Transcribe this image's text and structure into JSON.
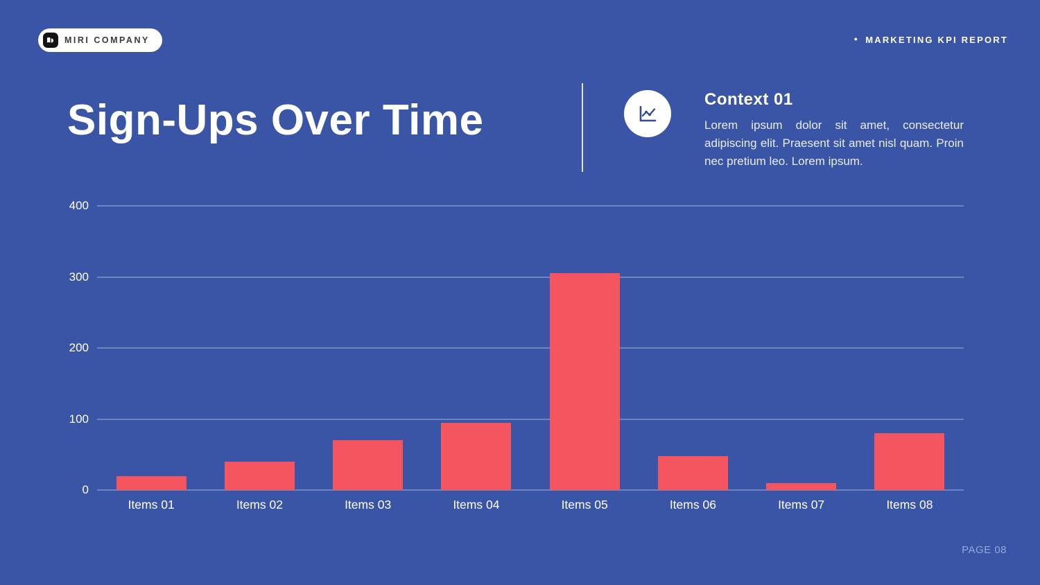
{
  "header": {
    "logo_text": "MIRI COMPANY",
    "report_label": "MARKETING KPI REPORT",
    "bullet": "●"
  },
  "title": "Sign-Ups Over Time",
  "context": {
    "heading": "Context 01",
    "body": "Lorem ipsum dolor sit amet, consectetur adipiscing elit. Praesent sit amet nisl quam. Proin nec pretium leo. Lorem ipsum."
  },
  "footer": {
    "page_label": "PAGE 08"
  },
  "colors": {
    "background": "#3A55A6",
    "bar": "#F4555E",
    "icon_blue": "#32499C",
    "grid": "rgba(255,255,255,0.55)"
  },
  "icons": {
    "logo": "book-logo-icon",
    "context": "line-chart-icon"
  },
  "chart_data": {
    "type": "bar",
    "categories": [
      "Items 01",
      "Items 02",
      "Items 03",
      "Items 04",
      "Items 05",
      "Items 06",
      "Items 07",
      "Items 08"
    ],
    "values": [
      20,
      40,
      70,
      95,
      305,
      48,
      10,
      80
    ],
    "title": "Sign-Ups Over Time",
    "xlabel": "",
    "ylabel": "",
    "ylim": [
      0,
      400
    ],
    "ytick_step": 100,
    "grid": true,
    "legend": false,
    "bar_color": "#F4555E"
  }
}
